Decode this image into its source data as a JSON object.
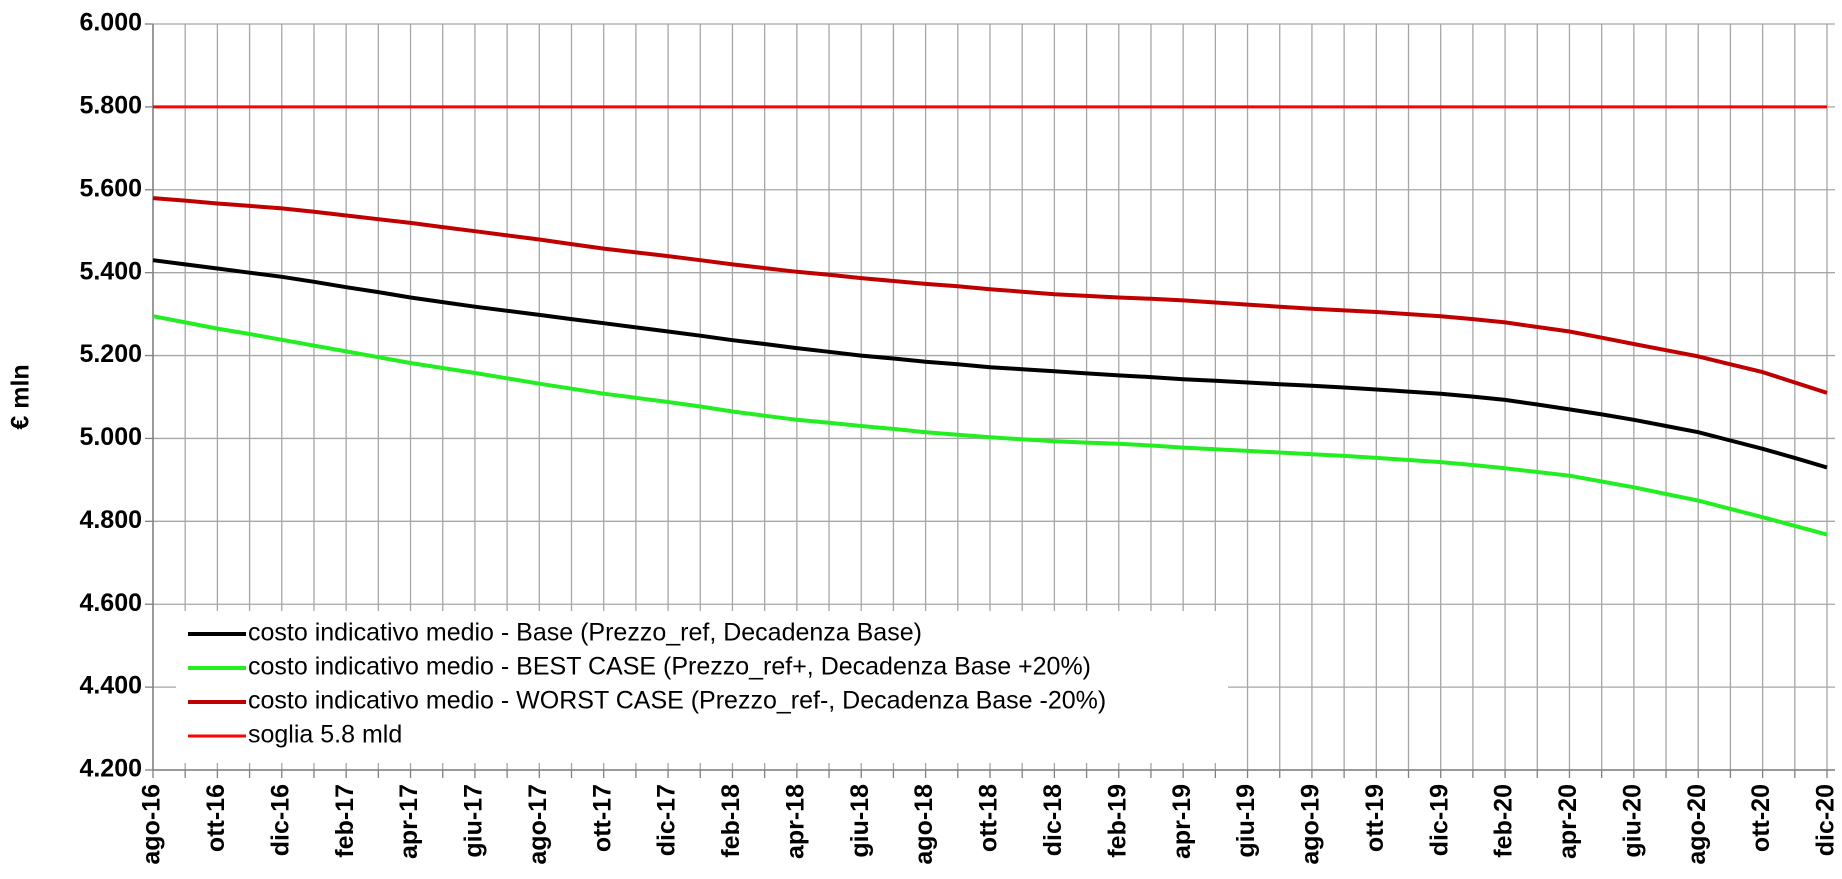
{
  "chart_data": {
    "type": "line",
    "y_label": "€ mln",
    "categories": [
      "ago-16",
      null,
      "ott-16",
      null,
      "dic-16",
      null,
      "feb-17",
      null,
      "apr-17",
      null,
      "giu-17",
      null,
      "ago-17",
      null,
      "ott-17",
      null,
      "dic-17",
      null,
      "feb-18",
      null,
      "apr-18",
      null,
      "giu-18",
      null,
      "ago-18",
      null,
      "ott-18",
      null,
      "dic-18",
      null,
      "feb-19",
      null,
      "apr-19",
      null,
      "giu-19",
      null,
      "ago-19",
      null,
      "ott-19",
      null,
      "dic-19",
      null,
      "feb-20",
      null,
      "apr-20",
      null,
      "giu-20",
      null,
      "ago-20",
      null,
      "ott-20",
      null,
      "dic-20"
    ],
    "series": [
      {
        "name": "costo indicativo medio - Base (Prezzo_ref, Decadenza Base)",
        "color": "#000000",
        "width": 4,
        "values": [
          5430,
          5420,
          5410,
          5400,
          5390,
          5378,
          5365,
          5353,
          5340,
          5329,
          5318,
          5308,
          5298,
          5288,
          5278,
          5268,
          5258,
          5248,
          5237,
          5228,
          5218,
          5209,
          5200,
          5193,
          5185,
          5179,
          5172,
          5167,
          5162,
          5157,
          5152,
          5148,
          5143,
          5139,
          5135,
          5131,
          5127,
          5123,
          5118,
          5113,
          5108,
          5101,
          5093,
          5082,
          5070,
          5058,
          5045,
          5030,
          5015,
          4995,
          4975,
          4953,
          4930
        ]
      },
      {
        "name": "costo indicativo medio - BEST CASE (Prezzo_ref+, Decadenza Base +20%)",
        "color": "#22ee22",
        "width": 4,
        "values": [
          5295,
          5280,
          5265,
          5252,
          5238,
          5224,
          5210,
          5196,
          5182,
          5170,
          5158,
          5145,
          5132,
          5120,
          5108,
          5098,
          5088,
          5077,
          5065,
          5055,
          5045,
          5038,
          5030,
          5023,
          5015,
          5009,
          5003,
          4998,
          4993,
          4990,
          4987,
          4983,
          4978,
          4974,
          4970,
          4966,
          4962,
          4958,
          4953,
          4948,
          4943,
          4936,
          4928,
          4919,
          4910,
          4896,
          4882,
          4866,
          4850,
          4830,
          4810,
          4789,
          4768
        ]
      },
      {
        "name": "costo indicativo medio - WORST CASE (Prezzo_ref-, Decadenza Base -20%)",
        "color": "#c00000",
        "width": 4,
        "values": [
          5580,
          5574,
          5567,
          5561,
          5555,
          5547,
          5538,
          5529,
          5520,
          5510,
          5500,
          5490,
          5480,
          5469,
          5458,
          5449,
          5440,
          5430,
          5420,
          5411,
          5402,
          5395,
          5387,
          5380,
          5373,
          5367,
          5360,
          5354,
          5348,
          5344,
          5340,
          5337,
          5333,
          5328,
          5323,
          5318,
          5313,
          5309,
          5305,
          5300,
          5295,
          5288,
          5280,
          5269,
          5258,
          5243,
          5228,
          5213,
          5198,
          5179,
          5160,
          5135,
          5110
        ]
      },
      {
        "name": "soglia 5.8 mld",
        "color": "#ff0000",
        "width": 3,
        "values": [
          5800,
          5800,
          5800,
          5800,
          5800,
          5800,
          5800,
          5800,
          5800,
          5800,
          5800,
          5800,
          5800,
          5800,
          5800,
          5800,
          5800,
          5800,
          5800,
          5800,
          5800,
          5800,
          5800,
          5800,
          5800,
          5800,
          5800,
          5800,
          5800,
          5800,
          5800,
          5800,
          5800,
          5800,
          5800,
          5800,
          5800,
          5800,
          5800,
          5800,
          5800,
          5800,
          5800,
          5800,
          5800,
          5800,
          5800,
          5800,
          5800,
          5800,
          5800,
          5800,
          5800
        ]
      }
    ],
    "ylim": [
      4200,
      6000
    ],
    "yticks": [
      {
        "value": 4200,
        "label": "4.200"
      },
      {
        "value": 4400,
        "label": "4.400"
      },
      {
        "value": 4600,
        "label": "4.600"
      },
      {
        "value": 4800,
        "label": "4.800"
      },
      {
        "value": 5000,
        "label": "5.000"
      },
      {
        "value": 5200,
        "label": "5.200"
      },
      {
        "value": 5400,
        "label": "5.400"
      },
      {
        "value": 5600,
        "label": "5.600"
      },
      {
        "value": 5800,
        "label": "5.800"
      },
      {
        "value": 6000,
        "label": "6.000"
      }
    ],
    "grid": true,
    "legend": "lower left"
  }
}
